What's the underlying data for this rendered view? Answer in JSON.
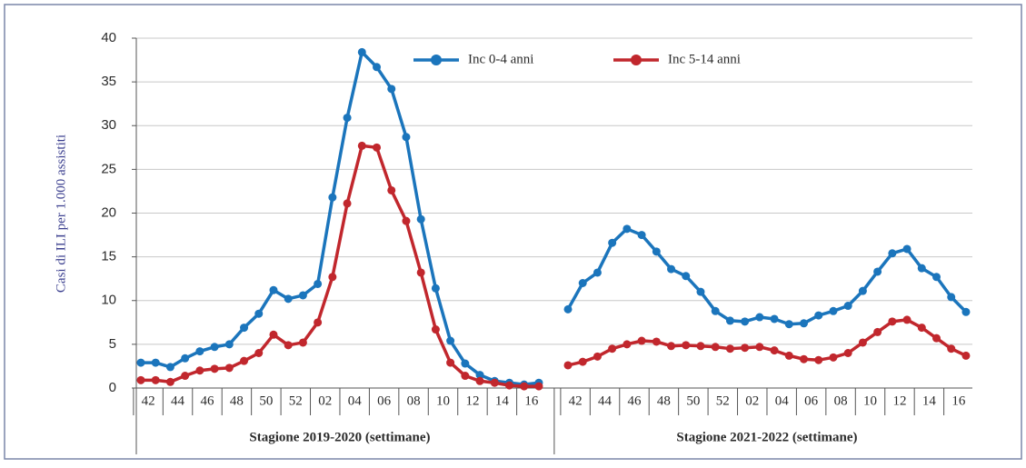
{
  "chart_data": {
    "type": "line",
    "y_label": "Casi di ILI per 1.000 assistiti",
    "ylim": [
      0,
      40
    ],
    "yticks": [
      0,
      5,
      10,
      15,
      20,
      25,
      30,
      35,
      40
    ],
    "grid": true,
    "groups": [
      {
        "label": "Stagione 2019-2020 (settimane)",
        "categories": [
          "42",
          null,
          "44",
          null,
          "46",
          null,
          "48",
          null,
          "50",
          null,
          "52",
          null,
          "02",
          null,
          "04",
          null,
          "06",
          null,
          "08",
          null,
          "10",
          null,
          "12",
          null,
          "14",
          null,
          "16",
          null
        ]
      },
      {
        "label": "Stagione 2021-2022 (settimane)",
        "categories": [
          "42",
          null,
          "44",
          null,
          "46",
          null,
          "48",
          null,
          "50",
          null,
          "52",
          null,
          "02",
          null,
          "04",
          null,
          "06",
          null,
          "08",
          null,
          "10",
          null,
          "12",
          null,
          "14",
          null,
          "16",
          null
        ]
      }
    ],
    "series": [
      {
        "name": "Inc 0-4 anni",
        "color": "#1b75bc",
        "values": [
          [
            2.9,
            2.9,
            2.4,
            3.4,
            4.2,
            4.7,
            5.0,
            6.9,
            8.5,
            11.2,
            10.2,
            10.6,
            11.9,
            21.8,
            30.9,
            38.4,
            36.7,
            34.2,
            28.7,
            19.3,
            11.4,
            5.4,
            2.8,
            1.5,
            0.8,
            0.6,
            0.4,
            0.6
          ],
          [
            9.0,
            12.0,
            13.2,
            16.6,
            18.2,
            17.5,
            15.6,
            13.6,
            12.8,
            11.0,
            8.8,
            7.7,
            7.6,
            8.1,
            7.9,
            7.3,
            7.4,
            8.3,
            8.8,
            9.4,
            11.1,
            13.3,
            15.4,
            15.9,
            13.7,
            12.7,
            10.4,
            8.7
          ]
        ]
      },
      {
        "name": "Inc 5-14 anni",
        "color": "#c1272d",
        "values": [
          [
            0.9,
            0.9,
            0.7,
            1.4,
            2.0,
            2.2,
            2.3,
            3.1,
            4.0,
            6.1,
            4.9,
            5.2,
            7.5,
            12.7,
            21.1,
            27.7,
            27.5,
            22.6,
            19.1,
            13.2,
            6.7,
            2.9,
            1.4,
            0.8,
            0.6,
            0.3,
            0.2,
            0.2
          ],
          [
            2.6,
            3.0,
            3.6,
            4.5,
            5.0,
            5.4,
            5.3,
            4.8,
            4.9,
            4.8,
            4.7,
            4.5,
            4.6,
            4.7,
            4.3,
            3.7,
            3.3,
            3.2,
            3.5,
            4.0,
            5.2,
            6.4,
            7.6,
            7.8,
            6.9,
            5.7,
            4.5,
            3.7
          ]
        ]
      }
    ]
  }
}
